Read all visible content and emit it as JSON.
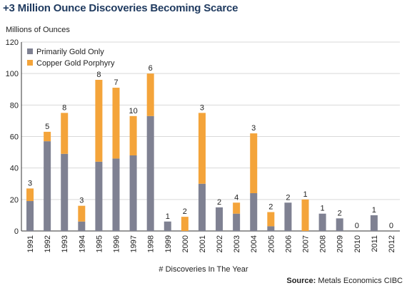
{
  "title": "+3 Million Ounce Discoveries Becoming Scarce",
  "source_label": "Source:",
  "source_text": "Metals Economics CIBC",
  "colors": {
    "gold": "#7f8192",
    "copper": "#f4a43a",
    "grid": "#d9d9d9",
    "axis": "#333333"
  },
  "chart_data": {
    "type": "bar",
    "stacked": true,
    "ylabel": "Millions of Ounces",
    "xlabel": "# Discoveries In The Year",
    "ylim": [
      0,
      120
    ],
    "yticks": [
      0,
      20,
      40,
      60,
      80,
      100,
      120
    ],
    "grid": true,
    "legend_position": "top-left",
    "categories": [
      "1991",
      "1992",
      "1993",
      "1994",
      "1995",
      "1996",
      "1997",
      "1998",
      "1999",
      "2000",
      "2001",
      "2002",
      "2003",
      "2004",
      "2005",
      "2006",
      "2007",
      "2008",
      "2009",
      "2010",
      "2011",
      "2012"
    ],
    "series": [
      {
        "name": "Primarily Gold Only",
        "color": "#7f8192",
        "values": [
          19,
          57,
          49,
          6,
          44,
          46,
          48,
          73,
          6,
          0,
          30,
          15,
          11,
          24,
          3,
          18,
          0,
          11,
          8,
          0,
          10,
          0
        ]
      },
      {
        "name": "Copper Gold Porphyry",
        "color": "#f4a43a",
        "values": [
          8,
          6,
          26,
          10,
          52,
          45,
          25,
          27,
          0,
          9,
          45,
          0,
          7,
          38,
          9,
          0,
          20,
          0,
          0,
          0,
          0,
          0
        ]
      }
    ],
    "discovery_counts": [
      "3",
      "5",
      "8",
      "3",
      "8",
      "7",
      "10",
      "6",
      "1",
      "2",
      "3",
      "2",
      "4",
      "3",
      "2",
      "2",
      "1",
      "1",
      "2",
      "0",
      "1",
      "0"
    ]
  }
}
